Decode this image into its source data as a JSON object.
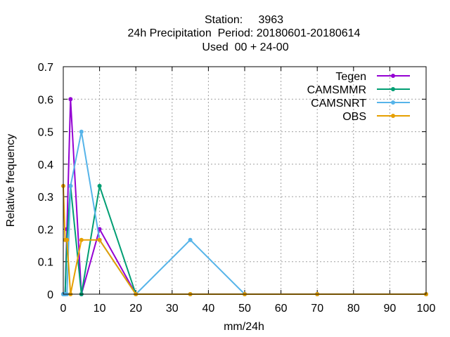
{
  "chart_data": {
    "type": "line",
    "title_lines": [
      "Station:     3963",
      "24h Precipitation  Period: 20180601-20180614",
      "Used  00 + 24-00"
    ],
    "xlabel": "mm/24h",
    "ylabel": "Relative frequency",
    "xlim": [
      0,
      100
    ],
    "ylim": [
      0,
      0.7
    ],
    "xticks": [
      0,
      10,
      20,
      30,
      40,
      50,
      60,
      70,
      80,
      90,
      100
    ],
    "yticks": [
      0,
      0.1,
      0.2,
      0.3,
      0.4,
      0.5,
      0.6,
      0.7
    ],
    "xtick_labels": [
      "0",
      "10",
      "20",
      "30",
      "40",
      "50",
      "60",
      "70",
      "80",
      "90",
      "100"
    ],
    "ytick_labels": [
      "0",
      "0.1",
      "0.2",
      "0.3",
      "0.4",
      "0.5",
      "0.6",
      "0.7"
    ],
    "grid": true,
    "legend_position": "top-right",
    "series": [
      {
        "name": "Tegen",
        "color": "#9400d3",
        "x": [
          0,
          0.5,
          1,
          2,
          5,
          10,
          20,
          35,
          50,
          70,
          100
        ],
        "y": [
          0,
          0,
          0.2,
          0.6,
          0,
          0.2,
          0,
          0,
          0,
          0,
          0
        ]
      },
      {
        "name": "CAMSMMR",
        "color": "#009e73",
        "x": [
          0,
          0.5,
          1,
          2,
          5,
          10,
          20,
          35,
          50,
          70,
          100
        ],
        "y": [
          0,
          0,
          0.167,
          0.333,
          0,
          0.333,
          0,
          0,
          0,
          0,
          0
        ]
      },
      {
        "name": "CAMSNRT",
        "color": "#56b4e9",
        "x": [
          0,
          0.5,
          1,
          2,
          5,
          10,
          20,
          35,
          50,
          70,
          100
        ],
        "y": [
          0,
          0,
          0,
          0.333,
          0.5,
          0.167,
          0,
          0.167,
          0,
          0,
          0
        ]
      },
      {
        "name": "OBS",
        "color": "#e69f00",
        "x": [
          0,
          0.5,
          1,
          2,
          5,
          10,
          20,
          35,
          50,
          70,
          100
        ],
        "y": [
          0.333,
          0.167,
          0.167,
          0,
          0.167,
          0.167,
          0,
          0,
          0,
          0,
          0
        ]
      }
    ]
  }
}
